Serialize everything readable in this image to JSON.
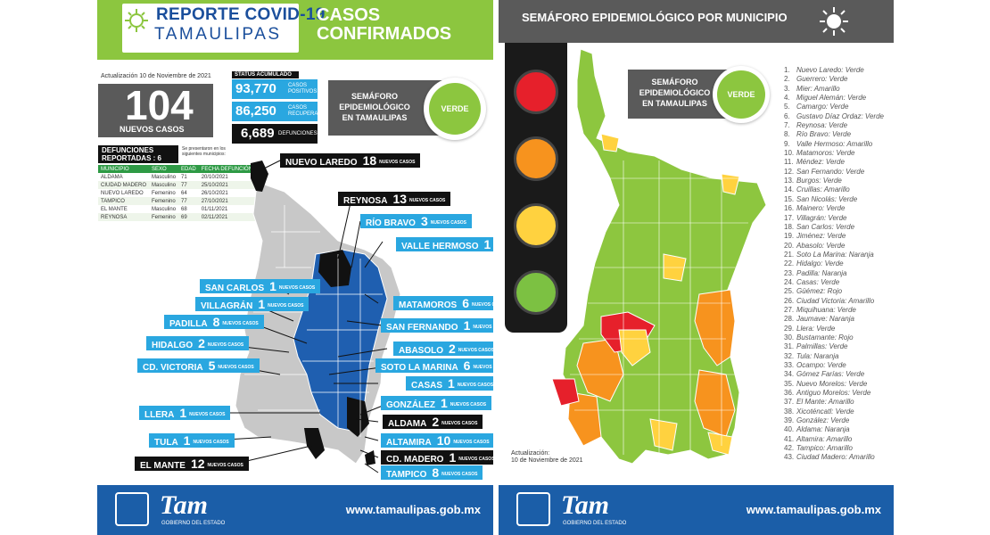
{
  "left": {
    "header": {
      "title_line1": "REPORTE COVID-19",
      "title_line2": "TAMAULIPAS",
      "subtitle_line1": "CASOS",
      "subtitle_line2": "CONFIRMADOS"
    },
    "update": "Actualización 10 de Noviembre de 2021",
    "new_cases": {
      "number": "104",
      "label": "NUEVOS CASOS"
    },
    "status": {
      "title": "STATUS ACUMULADO",
      "positives": {
        "value": "93,770",
        "label1": "CASOS",
        "label2": "POSITIVOS"
      },
      "recovered": {
        "value": "86,250",
        "label1": "CASOS",
        "label2": "RECUPERADOS"
      },
      "deaths": {
        "value": "6,689",
        "label": "DEFUNCIONES"
      }
    },
    "semaforo": {
      "line1": "SEMÁFORO",
      "line2": "EPIDEMIOLÓGICO",
      "line3": "EN TAMAULIPAS",
      "status": "VERDE"
    },
    "deaths_reported": {
      "title1": "DEFUNCIONES",
      "title2": "REPORTADAS : 6",
      "note": "Se presentaron en los siguientes municipios:",
      "headers": [
        "MUNICIPIO",
        "SEXO",
        "EDAD",
        "FECHA DEFUNCIÓN"
      ],
      "rows": [
        [
          "ALDAMA",
          "Masculino",
          "71",
          "20/10/2021"
        ],
        [
          "CIUDAD MADERO",
          "Masculino",
          "77",
          "25/10/2021"
        ],
        [
          "NUEVO LAREDO",
          "Femenino",
          "64",
          "26/10/2021"
        ],
        [
          "TAMPICO",
          "Femenino",
          "77",
          "27/10/2021"
        ],
        [
          "EL MANTE",
          "Masculino",
          "68",
          "01/11/2021"
        ],
        [
          "REYNOSA",
          "Femenino",
          "69",
          "02/11/2021"
        ]
      ]
    },
    "cases_label": "NUEVOS CASOS",
    "municipalities": [
      {
        "name": "NUEVO LAREDO",
        "count": "18"
      },
      {
        "name": "REYNOSA",
        "count": "13"
      },
      {
        "name": "RÍO BRAVO",
        "count": "3"
      },
      {
        "name": "VALLE HERMOSO",
        "count": "1"
      },
      {
        "name": "SAN CARLOS",
        "count": "1"
      },
      {
        "name": "VILLAGRÁN",
        "count": "1"
      },
      {
        "name": "MATAMOROS",
        "count": "6"
      },
      {
        "name": "PADILLA",
        "count": "8"
      },
      {
        "name": "SAN FERNANDO",
        "count": "1"
      },
      {
        "name": "HIDALGO",
        "count": "2"
      },
      {
        "name": "ABASOLO",
        "count": "2"
      },
      {
        "name": "CD. VICTORIA",
        "count": "5"
      },
      {
        "name": "SOTO LA MARINA",
        "count": "6"
      },
      {
        "name": "CASAS",
        "count": "1"
      },
      {
        "name": "GONZÁLEZ",
        "count": "1"
      },
      {
        "name": "LLERA",
        "count": "1"
      },
      {
        "name": "ALDAMA",
        "count": "2"
      },
      {
        "name": "TULA",
        "count": "1"
      },
      {
        "name": "ALTAMIRA",
        "count": "10"
      },
      {
        "name": "CD. MADERO",
        "count": "1"
      },
      {
        "name": "EL MANTE",
        "count": "12"
      },
      {
        "name": "TAMPICO",
        "count": "8"
      }
    ],
    "footer": {
      "logo": "Tam",
      "logo_sub": "GOBIERNO DEL ESTADO",
      "url": "www.tamaulipas.gob.mx"
    }
  },
  "right": {
    "header": {
      "title": "SEMÁFORO EPIDEMIOLÓGICO POR MUNICIPIO"
    },
    "semaforo": {
      "line1": "SEMÁFORO",
      "line2": "EPIDEMIOLÓGICO",
      "line3": "EN TAMAULIPAS",
      "status": "VERDE"
    },
    "update1": "Actualización:",
    "update2": "10 de Noviembre de 2021",
    "list": [
      "Nuevo Laredo: Verde",
      "Guerrero: Verde",
      "Mier: Amarillo",
      "Miguel Alemán: Verde",
      "Camargo: Verde",
      "Gustavo Díaz Ordaz: Verde",
      "Reynosa: Verde",
      "Río Bravo: Verde",
      "Valle Hermoso: Amarillo",
      "Matamoros: Verde",
      "Méndez: Verde",
      "San Fernando: Verde",
      "Burgos: Verde",
      "Cruillas: Amarillo",
      "San Nicolás: Verde",
      "Mainero: Verde",
      "Villagrán: Verde",
      "San Carlos: Verde",
      "Jiménez: Verde",
      "Abasolo: Verde",
      "Soto La Marina: Naranja",
      "Hidalgo: Verde",
      "Padilla: Naranja",
      "Casas: Verde",
      "Güémez: Rojo",
      "Ciudad Victoria: Amarillo",
      "Miquihuana: Verde",
      "Jaumave: Naranja",
      "Llera: Verde",
      "Bustamante: Rojo",
      "Palmillas: Verde",
      "Tula: Naranja",
      "Ocampo: Verde",
      "Gómez Farías: Verde",
      "Nuevo Morelos: Verde",
      "Antiguo Morelos: Verde",
      "El Mante: Amarillo",
      "Xicoténcatl: Verde",
      "González: Verde",
      "Aldama: Naranja",
      "Altamira: Amarillo",
      "Tampico: Amarillo",
      "Ciudad Madero: Amarillo"
    ],
    "footer": {
      "logo": "Tam",
      "logo_sub": "GOBIERNO DEL ESTADO",
      "url": "www.tamaulipas.gob.mx"
    }
  },
  "colors": {
    "green": "#8cc63f",
    "blue": "#2aa7e0",
    "dark_blue": "#1b5ea8",
    "navy": "#1b4f9c",
    "gray": "#5a5a5a",
    "map_green": "#8dc63f",
    "map_orange": "#f7931e",
    "map_yellow": "#ffd23f",
    "map_red": "#e6202b"
  }
}
